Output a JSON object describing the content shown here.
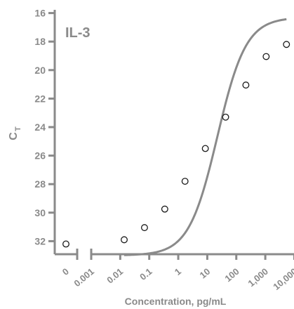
{
  "chart_data": {
    "type": "scatter",
    "title": "IL-3",
    "xlabel": "Concentration, pg/mL",
    "ylabel": "C",
    "ylabel_subscript": "T",
    "x_scale": "log",
    "x_axis_break": true,
    "y_inverted": true,
    "ylim": [
      32.7,
      16
    ],
    "y_ticks": [
      16,
      18,
      20,
      22,
      24,
      26,
      28,
      30,
      32
    ],
    "x_tick_labels": [
      "0",
      "0.001",
      "0.01",
      "0.1",
      "1",
      "10",
      "100",
      "1,000",
      "10,000"
    ],
    "x_ticks_log_values": [
      0.001,
      0.01,
      0.1,
      1,
      10,
      100,
      1000,
      10000
    ],
    "series": [
      {
        "points": [
          {
            "x": 0.0137,
            "y": 31.9
          },
          {
            "x": 0.0686,
            "y": 31.05
          },
          {
            "x": 0.343,
            "y": 29.75
          },
          {
            "x": 1.71,
            "y": 27.8
          },
          {
            "x": 8.57,
            "y": 25.5
          },
          {
            "x": 42.9,
            "y": 23.3
          },
          {
            "x": 214,
            "y": 21.05
          },
          {
            "x": 1070,
            "y": 19.05
          },
          {
            "x": 5360,
            "y": 18.2
          }
        ],
        "zero_point": {
          "x": 0,
          "y": 32.2
        },
        "fit": "sigmoid"
      }
    ],
    "grid": false,
    "legend": "none"
  }
}
